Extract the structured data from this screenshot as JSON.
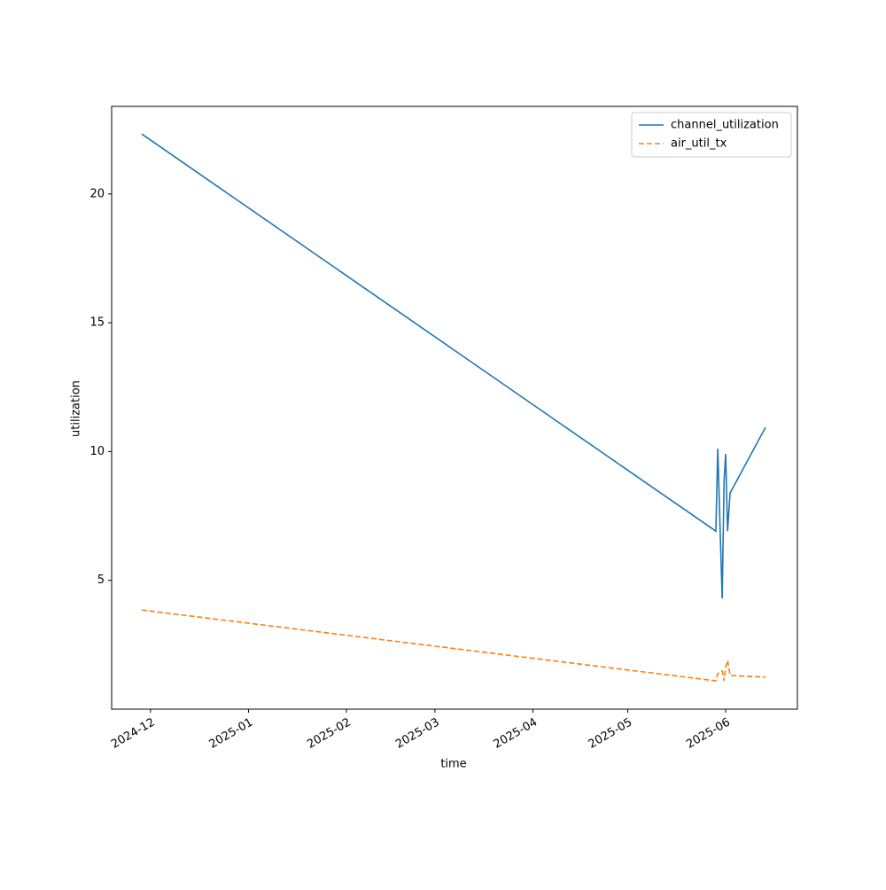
{
  "chart_data": {
    "type": "line",
    "x_label": "time",
    "y_label": "utilization",
    "x": [
      20055.2,
      20236.9,
      20237.5,
      20238.9,
      20239.5,
      20240.0,
      20240.6,
      20241.4,
      20252.6
    ],
    "series": [
      {
        "name": "channel_utilization",
        "color": "#1f77b4",
        "linestyle": "solid",
        "values": [
          22.33,
          6.91,
          10.11,
          4.3,
          8.84,
          9.91,
          6.91,
          8.39,
          10.94
        ]
      },
      {
        "name": "air_util_tx",
        "color": "#ff7f0e",
        "linestyle": "dashed",
        "values": [
          3.85,
          1.1,
          1.38,
          1.48,
          1.1,
          1.65,
          1.89,
          1.31,
          1.24
        ]
      }
    ],
    "xlim": [
      20045.7,
      20262.7
    ],
    "xticks": [
      {
        "value": 20058,
        "label": "2024-12"
      },
      {
        "value": 20089,
        "label": "2025-01"
      },
      {
        "value": 20120,
        "label": "2025-02"
      },
      {
        "value": 20148,
        "label": "2025-03"
      },
      {
        "value": 20179,
        "label": "2025-04"
      },
      {
        "value": 20209,
        "label": "2025-05"
      },
      {
        "value": 20240,
        "label": "2025-06"
      }
    ],
    "ylim": [
      0,
      23.4
    ],
    "yticks": [
      5,
      10,
      15,
      20
    ],
    "legend": "upper right"
  }
}
